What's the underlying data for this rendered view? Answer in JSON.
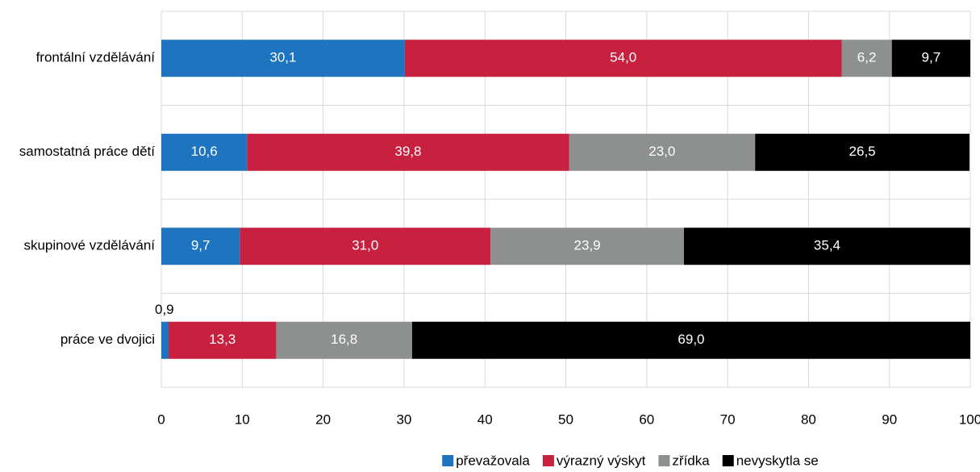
{
  "chart_data": {
    "type": "stacked-barh",
    "categories": [
      "frontální vzdělávání",
      "samostatná práce dětí",
      "skupinové vzdělávání",
      "práce ve dvojici"
    ],
    "series": [
      {
        "name": "převažovala",
        "color": "#1f74bf",
        "values": [
          30.1,
          10.6,
          9.7,
          0.9
        ],
        "value_labels": [
          "30,1",
          "10,6",
          "9,7",
          "0,9"
        ]
      },
      {
        "name": "výrazný výskyt",
        "color": "#c8203f",
        "values": [
          54.0,
          39.8,
          31.0,
          13.3
        ],
        "value_labels": [
          "54,0",
          "39,8",
          "31,0",
          "13,3"
        ]
      },
      {
        "name": "zřídka",
        "color": "#8e9090",
        "values": [
          6.2,
          23.0,
          23.9,
          16.8
        ],
        "value_labels": [
          "6,2",
          "23,0",
          "23,9",
          "16,8"
        ]
      },
      {
        "name": "nevyskytla se",
        "color": "#000000",
        "values": [
          9.7,
          26.5,
          35.4,
          69.0
        ],
        "value_labels": [
          "9,7",
          "26,5",
          "35,4",
          "69,0"
        ]
      }
    ],
    "xlim": [
      0,
      100
    ],
    "xticks": [
      0,
      10,
      20,
      30,
      40,
      50,
      60,
      70,
      80,
      90,
      100
    ],
    "grid": true,
    "legend": "bottom"
  }
}
